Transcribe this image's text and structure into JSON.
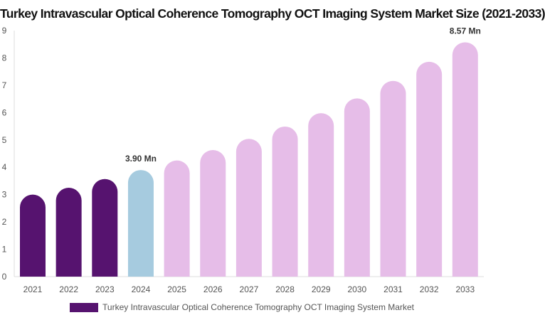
{
  "chart_data": {
    "type": "bar",
    "title": "Turkey Intravascular Optical Coherence Tomography OCT Imaging System Market Size (2021-2033)",
    "categories": [
      "2021",
      "2022",
      "2023",
      "2024",
      "2025",
      "2026",
      "2027",
      "2028",
      "2029",
      "2030",
      "2031",
      "2032",
      "2033"
    ],
    "series": [
      {
        "name": "Turkey Intravascular Optical Coherence Tomography OCT Imaging System Market",
        "values": [
          3.0,
          3.25,
          3.57,
          3.9,
          4.25,
          4.63,
          5.04,
          5.49,
          5.98,
          6.52,
          7.16,
          7.86,
          8.57
        ]
      }
    ],
    "bar_colors": [
      "#56136f",
      "#56136f",
      "#56136f",
      "#a6cbdf",
      "#e6bde8",
      "#e6bde8",
      "#e6bde8",
      "#e6bde8",
      "#e6bde8",
      "#e6bde8",
      "#e6bde8",
      "#e6bde8",
      "#e6bde8"
    ],
    "legend_color": "#56136f",
    "data_labels": [
      {
        "category": "2024",
        "text": "3.90 Mn"
      },
      {
        "category": "2033",
        "text": "8.57 Mn"
      }
    ],
    "yticks": [
      "0",
      "1",
      "2",
      "3",
      "4",
      "5",
      "6",
      "7",
      "8",
      "9"
    ],
    "ylim": [
      0,
      9
    ],
    "xlabel": "",
    "ylabel": "",
    "grid": false,
    "legend_position": "bottom"
  }
}
